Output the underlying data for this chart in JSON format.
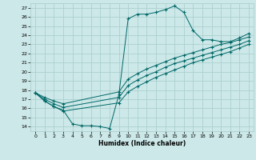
{
  "xlabel": "Humidex (Indice chaleur)",
  "bg_color": "#cce8e8",
  "grid_color": "#a8cccc",
  "line_color": "#006868",
  "xlim": [
    -0.5,
    23.5
  ],
  "ylim": [
    13.5,
    27.5
  ],
  "yticks": [
    14,
    15,
    16,
    17,
    18,
    19,
    20,
    21,
    22,
    23,
    24,
    25,
    26,
    27
  ],
  "xticks": [
    0,
    1,
    2,
    3,
    4,
    5,
    6,
    7,
    8,
    9,
    10,
    11,
    12,
    13,
    14,
    15,
    16,
    17,
    18,
    19,
    20,
    21,
    22,
    23
  ],
  "line1_x": [
    0,
    1,
    2,
    3,
    4,
    5,
    6,
    7,
    8,
    9,
    10,
    11,
    12,
    13,
    14,
    15,
    16,
    17,
    18,
    19,
    20,
    21,
    22,
    23
  ],
  "line1_y": [
    17.7,
    16.8,
    16.2,
    15.8,
    14.3,
    14.1,
    14.1,
    14.0,
    13.8,
    17.5,
    25.8,
    26.3,
    26.3,
    26.5,
    26.8,
    27.2,
    26.5,
    24.5,
    23.5,
    23.5,
    23.3,
    23.3,
    23.7,
    24.2
  ],
  "line2_x": [
    0,
    1,
    2,
    3,
    9,
    10,
    11,
    12,
    13,
    14,
    15,
    16,
    17,
    18,
    19,
    20,
    21,
    22,
    23
  ],
  "line2_y": [
    17.7,
    17.2,
    16.8,
    16.5,
    17.8,
    19.2,
    19.8,
    20.3,
    20.7,
    21.1,
    21.5,
    21.8,
    22.1,
    22.4,
    22.7,
    23.0,
    23.2,
    23.5,
    23.8
  ],
  "line3_x": [
    0,
    1,
    2,
    3,
    9,
    10,
    11,
    12,
    13,
    14,
    15,
    16,
    17,
    18,
    19,
    20,
    21,
    22,
    23
  ],
  "line3_y": [
    17.7,
    17.0,
    16.5,
    16.1,
    17.2,
    18.5,
    19.1,
    19.6,
    20.0,
    20.5,
    20.9,
    21.2,
    21.5,
    21.8,
    22.1,
    22.4,
    22.7,
    23.0,
    23.4
  ],
  "line4_x": [
    0,
    1,
    2,
    3,
    9,
    10,
    11,
    12,
    13,
    14,
    15,
    16,
    17,
    18,
    19,
    20,
    21,
    22,
    23
  ],
  "line4_y": [
    17.7,
    16.8,
    16.2,
    15.7,
    16.6,
    17.8,
    18.4,
    18.9,
    19.4,
    19.8,
    20.2,
    20.6,
    21.0,
    21.3,
    21.6,
    21.9,
    22.2,
    22.6,
    23.0
  ]
}
